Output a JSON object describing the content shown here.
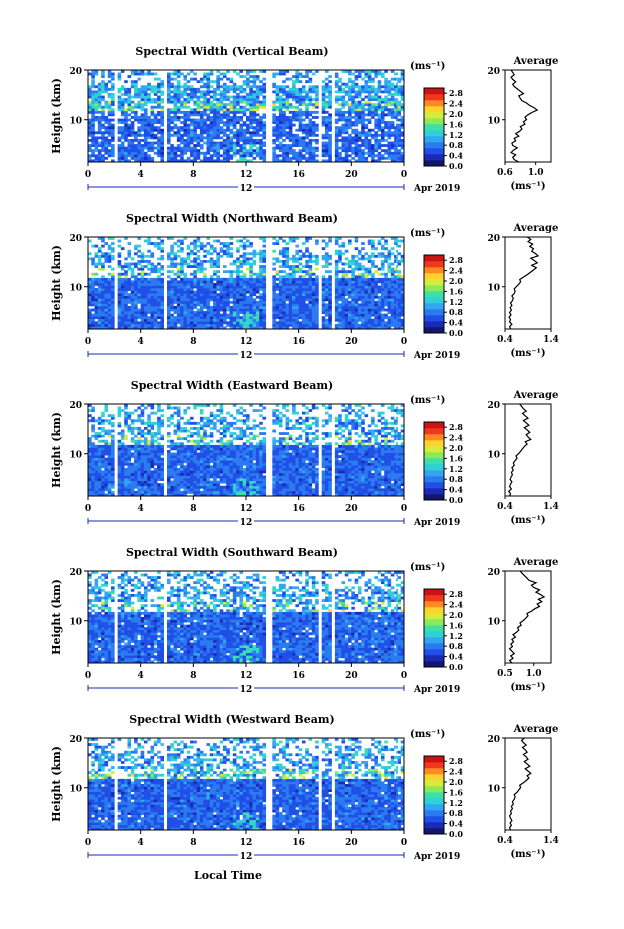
{
  "figure": {
    "xlabel": "Local Time",
    "date_label": "Apr 2019",
    "colorbar_unit": "(ms⁻¹)",
    "average_title": "Average",
    "average_xlabel": "(ms⁻¹)",
    "ylabel": "Height (km)",
    "day_marker": "12"
  },
  "chart_data": [
    {
      "type": "heatmap",
      "title": "Spectral Width (Vertical Beam)",
      "ylabel": "Height (km)",
      "x_ticks": [
        "0",
        "4",
        "8",
        "12",
        "16",
        "20",
        "0"
      ],
      "y_ticks": [
        "20",
        "10"
      ],
      "xlim": [
        0,
        24
      ],
      "ylim": [
        1.5,
        20
      ],
      "colorbar_ticks": [
        "2.8",
        "2.4",
        "2.0",
        "1.6",
        "1.2",
        "0.8",
        "0.4",
        "0.0"
      ],
      "colorbar_range": [
        0,
        3.0
      ],
      "data_gaps_hours": [
        [
          2.0,
          2.3
        ],
        [
          5.7,
          5.9
        ],
        [
          13.6,
          13.9
        ],
        [
          17.6,
          17.8
        ],
        [
          18.6,
          18.8
        ]
      ],
      "average_profile": {
        "xlim": [
          0.6,
          1.2
        ],
        "x_ticks": [
          "0.6",
          "1.0"
        ],
        "values": [
          0.78,
          0.72,
          0.7,
          0.74,
          0.68,
          0.71,
          0.76,
          0.7,
          0.69,
          0.74,
          0.72,
          0.78,
          0.74,
          0.79,
          0.82,
          0.8,
          0.86,
          0.84,
          0.88,
          0.86,
          0.9,
          0.95,
          1.02,
          0.98,
          0.92,
          0.88,
          0.82,
          0.8,
          0.78,
          0.84,
          0.8,
          0.76,
          0.72,
          0.7,
          0.74,
          0.7,
          0.68,
          0.72,
          0.7,
          0.68
        ]
      }
    },
    {
      "type": "heatmap",
      "title": "Spectral Width (Northward Beam)",
      "ylabel": "Height (km)",
      "x_ticks": [
        "0",
        "4",
        "8",
        "12",
        "16",
        "20",
        "0"
      ],
      "y_ticks": [
        "20",
        "10"
      ],
      "xlim": [
        0,
        24
      ],
      "ylim": [
        1.5,
        20
      ],
      "colorbar_ticks": [
        "2.8",
        "2.4",
        "2.0",
        "1.6",
        "1.2",
        "0.8",
        "0.4",
        "0.0"
      ],
      "colorbar_range": [
        0,
        3.0
      ],
      "data_gaps_hours": [
        [
          2.0,
          2.3
        ],
        [
          5.7,
          5.9
        ],
        [
          13.6,
          13.9
        ],
        [
          17.6,
          17.8
        ],
        [
          18.6,
          18.8
        ]
      ],
      "average_profile": {
        "xlim": [
          0.4,
          1.4
        ],
        "x_ticks": [
          "0.4",
          "1.4"
        ],
        "values": [
          0.52,
          0.5,
          0.55,
          0.5,
          0.52,
          0.49,
          0.53,
          0.5,
          0.54,
          0.51,
          0.55,
          0.52,
          0.56,
          0.58,
          0.55,
          0.6,
          0.62,
          0.6,
          0.65,
          0.7,
          0.74,
          0.72,
          0.8,
          0.88,
          0.95,
          1.02,
          1.08,
          0.98,
          1.1,
          1.04,
          0.96,
          1.12,
          1.06,
          0.98,
          1.02,
          0.94,
          1.0,
          0.9,
          0.96,
          0.88
        ]
      }
    },
    {
      "type": "heatmap",
      "title": "Spectral Width (Eastward Beam)",
      "ylabel": "Height (km)",
      "x_ticks": [
        "0",
        "4",
        "8",
        "12",
        "16",
        "20",
        "0"
      ],
      "y_ticks": [
        "20",
        "10"
      ],
      "xlim": [
        0,
        24
      ],
      "ylim": [
        1.5,
        20
      ],
      "colorbar_ticks": [
        "2.8",
        "2.4",
        "2.0",
        "1.6",
        "1.2",
        "0.8",
        "0.4",
        "0.0"
      ],
      "colorbar_range": [
        0,
        3.0
      ],
      "data_gaps_hours": [
        [
          2.0,
          2.3
        ],
        [
          5.7,
          5.9
        ],
        [
          13.6,
          13.9
        ],
        [
          17.6,
          17.8
        ],
        [
          18.6,
          18.8
        ]
      ],
      "average_profile": {
        "xlim": [
          0.4,
          1.4
        ],
        "x_ticks": [
          "0.4",
          "1.4"
        ],
        "values": [
          0.5,
          0.52,
          0.48,
          0.54,
          0.5,
          0.52,
          0.55,
          0.51,
          0.53,
          0.56,
          0.54,
          0.58,
          0.55,
          0.6,
          0.58,
          0.62,
          0.66,
          0.64,
          0.7,
          0.74,
          0.78,
          0.82,
          0.88,
          0.84,
          0.96,
          0.9,
          0.86,
          0.94,
          0.88,
          0.82,
          0.92,
          0.86,
          0.8,
          0.9,
          0.84,
          0.78,
          0.86,
          0.8,
          0.76,
          0.72
        ]
      }
    },
    {
      "type": "heatmap",
      "title": "Spectral Width (Southward Beam)",
      "ylabel": "Height (km)",
      "x_ticks": [
        "0",
        "4",
        "8",
        "12",
        "16",
        "20",
        "0"
      ],
      "y_ticks": [
        "20",
        "10"
      ],
      "xlim": [
        0,
        24
      ],
      "ylim": [
        1.5,
        20
      ],
      "colorbar_ticks": [
        "2.8",
        "2.4",
        "2.0",
        "1.6",
        "1.2",
        "0.8",
        "0.4",
        "0.0"
      ],
      "colorbar_range": [
        0,
        3.0
      ],
      "data_gaps_hours": [
        [
          2.0,
          2.3
        ],
        [
          5.7,
          5.9
        ],
        [
          13.6,
          13.9
        ],
        [
          17.6,
          17.8
        ],
        [
          18.6,
          18.8
        ]
      ],
      "average_profile": {
        "xlim": [
          0.5,
          1.3
        ],
        "x_ticks": [
          "0.5",
          "1.0"
        ],
        "values": [
          0.62,
          0.58,
          0.64,
          0.6,
          0.66,
          0.62,
          0.58,
          0.63,
          0.6,
          0.65,
          0.62,
          0.68,
          0.64,
          0.7,
          0.74,
          0.72,
          0.78,
          0.76,
          0.82,
          0.86,
          0.9,
          0.88,
          0.96,
          1.02,
          1.1,
          1.06,
          1.14,
          1.08,
          1.18,
          1.12,
          1.04,
          1.1,
          1.0,
          0.96,
          1.04,
          0.92,
          0.88,
          0.84,
          0.8,
          0.76
        ]
      }
    },
    {
      "type": "heatmap",
      "title": "Spectral Width (Westward Beam)",
      "ylabel": "Height (km)",
      "x_ticks": [
        "0",
        "4",
        "8",
        "12",
        "16",
        "20",
        "0"
      ],
      "y_ticks": [
        "20",
        "10"
      ],
      "xlim": [
        0,
        24
      ],
      "ylim": [
        1.5,
        20
      ],
      "colorbar_ticks": [
        "2.8",
        "2.4",
        "2.0",
        "1.6",
        "1.2",
        "0.8",
        "0.4",
        "0.0"
      ],
      "colorbar_range": [
        0,
        3.0
      ],
      "data_gaps_hours": [
        [
          2.0,
          2.3
        ],
        [
          5.7,
          5.9
        ],
        [
          13.6,
          13.9
        ],
        [
          17.6,
          17.8
        ],
        [
          18.6,
          18.8
        ]
      ],
      "average_profile": {
        "xlim": [
          0.4,
          1.4
        ],
        "x_ticks": [
          "0.4",
          "1.4"
        ],
        "values": [
          0.52,
          0.5,
          0.54,
          0.51,
          0.55,
          0.52,
          0.5,
          0.54,
          0.52,
          0.56,
          0.54,
          0.58,
          0.56,
          0.6,
          0.62,
          0.6,
          0.66,
          0.7,
          0.74,
          0.72,
          0.8,
          0.86,
          0.92,
          0.88,
          0.96,
          0.9,
          0.84,
          0.94,
          0.88,
          0.82,
          0.9,
          0.86,
          0.8,
          0.88,
          0.84,
          0.78,
          0.86,
          0.8,
          0.76,
          0.82
        ]
      }
    }
  ],
  "colors": {
    "colormap": [
      "#12166e",
      "#1a2ab4",
      "#1f4fe6",
      "#2b7bf0",
      "#33a6f2",
      "#2fd0d8",
      "#3fe0a8",
      "#8cea5a",
      "#d6ec3a",
      "#ffd230",
      "#ff8a22",
      "#f2381c",
      "#c81414"
    ]
  }
}
